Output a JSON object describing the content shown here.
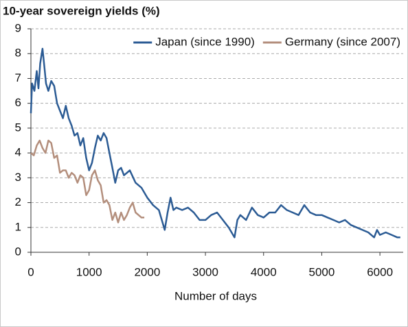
{
  "chart_data": {
    "type": "line",
    "title": "10-year sovereign yields (%)",
    "x_label": "Number of days",
    "xlim": [
      0,
      6400
    ],
    "xticks": [
      0,
      1000,
      2000,
      3000,
      4000,
      5000,
      6000
    ],
    "ylim": [
      0,
      9
    ],
    "yticks": [
      0,
      1,
      2,
      3,
      4,
      5,
      6,
      7,
      8,
      9
    ],
    "grid": true,
    "legend": "top-right",
    "series": [
      {
        "name": "Japan (since 1990)",
        "color": "#2b5b94",
        "x": [
          0,
          20,
          60,
          100,
          130,
          160,
          200,
          230,
          260,
          300,
          350,
          400,
          450,
          500,
          550,
          600,
          650,
          700,
          750,
          800,
          850,
          900,
          950,
          1000,
          1050,
          1100,
          1150,
          1200,
          1250,
          1300,
          1350,
          1400,
          1450,
          1500,
          1550,
          1600,
          1700,
          1800,
          1900,
          2000,
          2100,
          2200,
          2300,
          2350,
          2400,
          2450,
          2500,
          2600,
          2700,
          2800,
          2900,
          3000,
          3100,
          3200,
          3300,
          3400,
          3500,
          3550,
          3600,
          3700,
          3800,
          3900,
          4000,
          4100,
          4200,
          4300,
          4400,
          4500,
          4600,
          4700,
          4800,
          4900,
          5000,
          5100,
          5200,
          5300,
          5400,
          5500,
          5600,
          5700,
          5800,
          5900,
          5950,
          6000,
          6100,
          6200,
          6300,
          6350
        ],
        "values": [
          5.6,
          6.8,
          6.5,
          7.3,
          6.6,
          7.6,
          8.2,
          7.5,
          6.8,
          6.5,
          6.9,
          6.7,
          6.0,
          5.7,
          5.4,
          5.9,
          5.4,
          5.1,
          4.7,
          4.8,
          4.3,
          4.6,
          3.8,
          3.3,
          3.6,
          4.2,
          4.7,
          4.5,
          4.8,
          4.6,
          4.0,
          3.4,
          2.8,
          3.3,
          3.4,
          3.1,
          3.3,
          2.8,
          2.6,
          2.2,
          1.9,
          1.7,
          0.9,
          1.6,
          2.2,
          1.7,
          1.8,
          1.7,
          1.8,
          1.6,
          1.3,
          1.3,
          1.5,
          1.6,
          1.3,
          1.0,
          0.6,
          1.3,
          1.5,
          1.3,
          1.8,
          1.5,
          1.4,
          1.6,
          1.6,
          1.9,
          1.7,
          1.6,
          1.5,
          1.9,
          1.6,
          1.5,
          1.5,
          1.4,
          1.3,
          1.2,
          1.3,
          1.1,
          1.0,
          0.9,
          0.8,
          0.6,
          0.9,
          0.7,
          0.8,
          0.7,
          0.6,
          0.6
        ]
      },
      {
        "name": "Germany (since 2007)",
        "color": "#b38e7c",
        "x": [
          0,
          50,
          100,
          150,
          200,
          250,
          300,
          350,
          400,
          450,
          500,
          550,
          600,
          650,
          700,
          750,
          800,
          850,
          900,
          950,
          1000,
          1050,
          1100,
          1150,
          1200,
          1250,
          1300,
          1350,
          1400,
          1450,
          1500,
          1550,
          1600,
          1650,
          1700,
          1750,
          1800,
          1850,
          1900,
          1950
        ],
        "values": [
          4.0,
          3.9,
          4.3,
          4.5,
          4.2,
          4.0,
          4.5,
          4.4,
          3.8,
          3.9,
          3.2,
          3.3,
          3.3,
          3.0,
          3.2,
          3.1,
          2.8,
          3.1,
          3.0,
          2.3,
          2.5,
          3.1,
          3.3,
          2.9,
          2.7,
          2.0,
          2.1,
          1.9,
          1.3,
          1.6,
          1.2,
          1.6,
          1.3,
          1.5,
          1.8,
          2.0,
          1.6,
          1.5,
          1.4,
          1.4
        ]
      }
    ]
  }
}
